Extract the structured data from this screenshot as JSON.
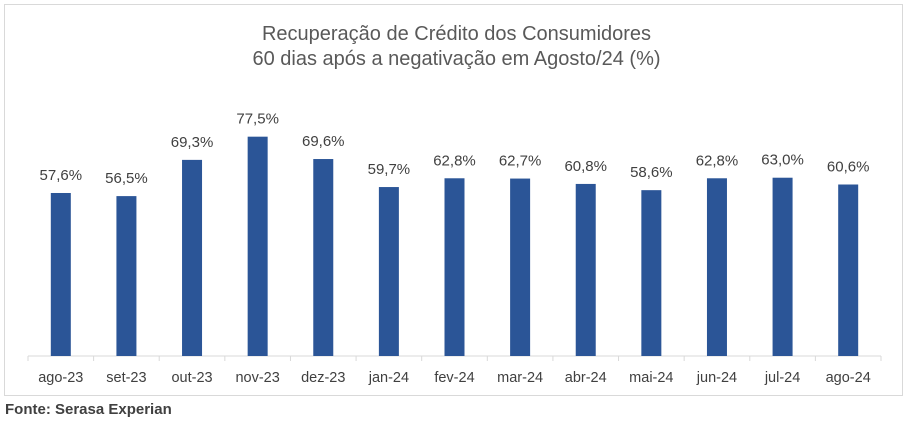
{
  "chart_data": {
    "type": "bar",
    "title": "Recuperação de Crédito dos Consumidores",
    "subtitle": "60 dias após a negativação em Agosto/24 (%)",
    "categories": [
      "ago-23",
      "set-23",
      "out-23",
      "nov-23",
      "dez-23",
      "jan-24",
      "fev-24",
      "mar-24",
      "abr-24",
      "mai-24",
      "jun-24",
      "jul-24",
      "ago-24"
    ],
    "values": [
      57.6,
      56.5,
      69.3,
      77.5,
      69.6,
      59.7,
      62.8,
      62.7,
      60.8,
      58.6,
      62.8,
      63.0,
      60.6
    ],
    "value_labels": [
      "57,6%",
      "56,5%",
      "69,3%",
      "77,5%",
      "69,6%",
      "59,7%",
      "62,8%",
      "62,7%",
      "60,8%",
      "58,6%",
      "62,8%",
      "63,0%",
      "60,6%"
    ],
    "ylim": [
      0,
      100
    ],
    "grid": false,
    "legend": "none",
    "bar_color": "#2b5597"
  },
  "source": "Fonte: Serasa Experian"
}
